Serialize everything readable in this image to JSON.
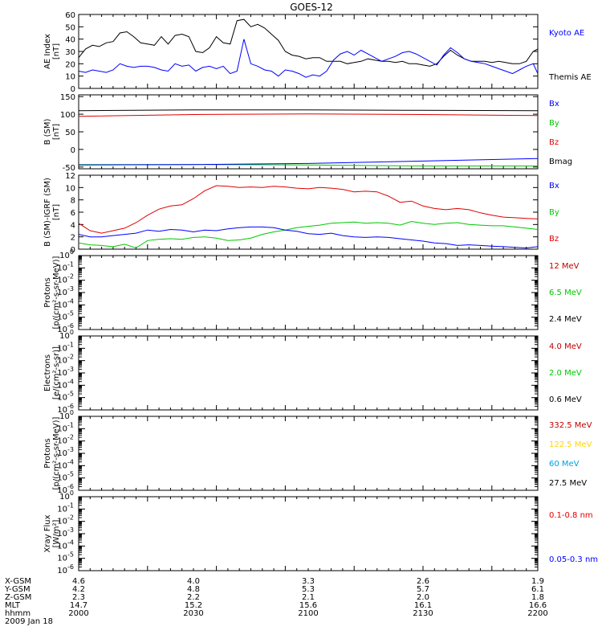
{
  "title": "GOES-12",
  "chart_data": [
    {
      "type": "line",
      "ylabel": [
        "AE Index",
        "[nT]"
      ],
      "ylim": [
        0,
        60
      ],
      "yticks": [
        "0",
        "10",
        "20",
        "30",
        "40",
        "50",
        "60"
      ],
      "legend": [
        {
          "label": "Kyoto AE",
          "color": "#0000ff"
        },
        {
          "label": "Themis AE",
          "color": "#000000"
        }
      ],
      "series": [
        {
          "name": "Themis AE",
          "color": "#000000",
          "x": [
            2000,
            2003,
            2006,
            2009,
            2012,
            2015,
            2018,
            2021,
            2024,
            2027,
            2030,
            2033,
            2036,
            2039,
            2042,
            2045,
            2048,
            2051,
            2054,
            2057,
            2060,
            2063,
            2066,
            2069,
            2072,
            2075,
            2078,
            2081,
            2084,
            2087,
            2090,
            2093,
            2096,
            2099,
            2102,
            2105,
            2108,
            2111,
            2114,
            2117,
            2120,
            2123,
            2126,
            2129,
            2132,
            2135,
            2138,
            2141,
            2144,
            2147,
            2150,
            2153,
            2156,
            2159,
            2162,
            2165,
            2168,
            2171,
            2174,
            2177,
            2180,
            2183,
            2186,
            2189,
            2192,
            2195,
            2198,
            2200
          ],
          "y": [
            25,
            32,
            35,
            34,
            37,
            38,
            45,
            46,
            42,
            37,
            36,
            35,
            42,
            36,
            43,
            44,
            42,
            30,
            29,
            33,
            42,
            37,
            36,
            55,
            56,
            50,
            52,
            49,
            44,
            39,
            30,
            27,
            26,
            24,
            25,
            25,
            22,
            22,
            22,
            20,
            21,
            22,
            24,
            23,
            22,
            22,
            21,
            22,
            20,
            20,
            19,
            18,
            20,
            26,
            31,
            27,
            24,
            22,
            22,
            22,
            21,
            22,
            21,
            20,
            20,
            22,
            30,
            32
          ]
        },
        {
          "name": "Kyoto AE",
          "color": "#0000ff",
          "x": [
            2000,
            2003,
            2006,
            2009,
            2012,
            2015,
            2018,
            2021,
            2024,
            2027,
            2030,
            2033,
            2036,
            2039,
            2042,
            2045,
            2048,
            2051,
            2054,
            2057,
            2060,
            2063,
            2066,
            2069,
            2072,
            2075,
            2078,
            2081,
            2084,
            2087,
            2090,
            2093,
            2096,
            2099,
            2102,
            2105,
            2108,
            2111,
            2114,
            2117,
            2120,
            2123,
            2126,
            2129,
            2132,
            2135,
            2138,
            2141,
            2144,
            2147,
            2150,
            2153,
            2156,
            2159,
            2162,
            2165,
            2168,
            2171,
            2174,
            2177,
            2180,
            2183,
            2186,
            2189,
            2192,
            2195,
            2198,
            2200
          ],
          "y": [
            14,
            13,
            15,
            14,
            13,
            15,
            20,
            18,
            17,
            18,
            18,
            17,
            15,
            14,
            20,
            18,
            19,
            14,
            17,
            18,
            16,
            18,
            12,
            14,
            40,
            20,
            18,
            15,
            14,
            10,
            15,
            14,
            12,
            9,
            11,
            10,
            14,
            23,
            28,
            30,
            27,
            31,
            28,
            25,
            22,
            24,
            26,
            29,
            30,
            28,
            25,
            22,
            19,
            27,
            33,
            29,
            24,
            22,
            21,
            20,
            18,
            16,
            14,
            12,
            15,
            18,
            20,
            12
          ]
        }
      ]
    },
    {
      "type": "line",
      "ylabel": [
        "B (SM)",
        "[nT]"
      ],
      "ylim": [
        -55,
        155
      ],
      "yticks": [
        "-50",
        "0",
        "50",
        "100",
        "150"
      ],
      "legend": [
        {
          "label": "Bx",
          "color": "#0000ff"
        },
        {
          "label": "By",
          "color": "#00c800"
        },
        {
          "label": "Bz",
          "color": "#e00000"
        },
        {
          "label": "Bmag",
          "color": "#000000"
        }
      ],
      "series": [
        {
          "name": "Bmag",
          "color": "#000000",
          "x": [
            2000,
            2050,
            2100,
            2150,
            2200
          ],
          "y": [
            110,
            112,
            112,
            111,
            110
          ]
        },
        {
          "name": "Bz",
          "color": "#e00000",
          "x": [
            2000,
            2050,
            2100,
            2150,
            2200
          ],
          "y": [
            94,
            99,
            101,
            99,
            96
          ]
        },
        {
          "name": "By",
          "color": "#00c800",
          "x": [
            2000,
            2050,
            2100,
            2150,
            2200
          ],
          "y": [
            -43,
            -43,
            -44,
            -47,
            -47
          ]
        },
        {
          "name": "Bx",
          "color": "#0000ff",
          "x": [
            2000,
            2050,
            2100,
            2150,
            2200
          ],
          "y": [
            -44,
            -43,
            -40,
            -33,
            -26
          ]
        }
      ]
    },
    {
      "type": "line",
      "ylabel": [
        "B (SM)-IGRF (SM)",
        "[nT]"
      ],
      "ylim": [
        0,
        12
      ],
      "yticks": [
        "0",
        "2",
        "4",
        "6",
        "8",
        "10",
        "12"
      ],
      "legend": [
        {
          "label": "Bx",
          "color": "#0000ff"
        },
        {
          "label": "By",
          "color": "#00c800"
        },
        {
          "label": "Bz",
          "color": "#e00000"
        }
      ],
      "series": [
        {
          "name": "Bz",
          "color": "#e00000",
          "x": [
            2000,
            2005,
            2010,
            2015,
            2020,
            2025,
            2030,
            2035,
            2040,
            2045,
            2050,
            2055,
            2060,
            2065,
            2070,
            2075,
            2080,
            2085,
            2090,
            2095,
            2100,
            2105,
            2110,
            2115,
            2120,
            2125,
            2130,
            2135,
            2140,
            2145,
            2150,
            2155,
            2160,
            2165,
            2170,
            2175,
            2180,
            2185,
            2190,
            2195,
            2200
          ],
          "y": [
            4.2,
            3.0,
            2.6,
            3.0,
            3.4,
            4.3,
            5.5,
            6.5,
            7.0,
            7.2,
            8.2,
            9.5,
            10.3,
            10.2,
            10.0,
            10.1,
            10.0,
            10.2,
            10.1,
            9.9,
            9.8,
            10.0,
            9.9,
            9.7,
            9.3,
            9.4,
            9.3,
            8.6,
            7.6,
            7.8,
            7.0,
            6.6,
            6.4,
            6.6,
            6.4,
            5.9,
            5.5,
            5.2,
            5.1,
            5.0,
            4.9
          ]
        },
        {
          "name": "By",
          "color": "#00c800",
          "x": [
            2000,
            2005,
            2010,
            2015,
            2020,
            2025,
            2030,
            2035,
            2040,
            2045,
            2050,
            2055,
            2060,
            2065,
            2070,
            2075,
            2080,
            2085,
            2090,
            2095,
            2100,
            2105,
            2110,
            2115,
            2120,
            2125,
            2130,
            2135,
            2140,
            2145,
            2150,
            2155,
            2160,
            2165,
            2170,
            2175,
            2180,
            2185,
            2190,
            2195,
            2200
          ],
          "y": [
            1.0,
            0.7,
            0.6,
            0.4,
            0.8,
            0.2,
            1.4,
            1.6,
            1.7,
            1.6,
            1.9,
            2.0,
            1.8,
            1.4,
            1.5,
            1.8,
            2.4,
            2.8,
            3.1,
            3.5,
            3.7,
            3.9,
            4.2,
            4.3,
            4.4,
            4.2,
            4.3,
            4.2,
            3.9,
            4.5,
            4.2,
            4.0,
            4.2,
            4.3,
            4.0,
            3.9,
            3.8,
            3.8,
            3.6,
            3.4,
            3.2
          ]
        },
        {
          "name": "Bx",
          "color": "#0000ff",
          "x": [
            2000,
            2005,
            2010,
            2015,
            2020,
            2025,
            2030,
            2035,
            2040,
            2045,
            2050,
            2055,
            2060,
            2065,
            2070,
            2075,
            2080,
            2085,
            2090,
            2095,
            2100,
            2105,
            2110,
            2115,
            2120,
            2125,
            2130,
            2135,
            2140,
            2145,
            2150,
            2155,
            2160,
            2165,
            2170,
            2175,
            2180,
            2185,
            2190,
            2195,
            2200
          ],
          "y": [
            2.4,
            2.0,
            2.0,
            2.2,
            2.4,
            2.6,
            3.1,
            2.9,
            3.2,
            3.1,
            2.8,
            3.1,
            3.0,
            3.3,
            3.5,
            3.6,
            3.6,
            3.5,
            3.1,
            2.9,
            2.5,
            2.4,
            2.6,
            2.2,
            2.0,
            1.9,
            2.0,
            1.9,
            1.7,
            1.5,
            1.3,
            1.0,
            0.9,
            0.6,
            0.7,
            0.6,
            0.5,
            0.4,
            0.3,
            0.2,
            0.4
          ]
        }
      ]
    },
    {
      "type": "line",
      "ylabel": [
        "Protons",
        "[p/(cm²-s-sr-MeV)]"
      ],
      "yscale": "log",
      "ylim": [
        1e-06,
        1
      ],
      "legend": [
        {
          "label": "12 MeV",
          "color": "#c00000"
        },
        {
          "label": "6.5 MeV",
          "color": "#00c800"
        },
        {
          "label": "2.4 MeV",
          "color": "#000000"
        }
      ],
      "series": []
    },
    {
      "type": "line",
      "ylabel": [
        "Electrons",
        "[e/(cm²-s-sr)]"
      ],
      "yscale": "log",
      "ylim": [
        1e-06,
        1
      ],
      "legend": [
        {
          "label": "4.0 MeV",
          "color": "#c00000"
        },
        {
          "label": "2.0 MeV",
          "color": "#00c800"
        },
        {
          "label": "0.6 MeV",
          "color": "#000000"
        }
      ],
      "series": []
    },
    {
      "type": "line",
      "ylabel": [
        "Protons",
        "[p/(cm²-s-sr-MeV)]"
      ],
      "yscale": "log",
      "ylim": [
        1e-06,
        1
      ],
      "legend": [
        {
          "label": "332.5 MeV",
          "color": "#c00000"
        },
        {
          "label": "122.5 MeV",
          "color": "#ffd700"
        },
        {
          "label": "60 MeV",
          "color": "#00a0e0"
        },
        {
          "label": "27.5 MeV",
          "color": "#000000"
        }
      ],
      "series": []
    },
    {
      "type": "line",
      "ylabel": [
        "Xray Flux",
        "[W/m²]"
      ],
      "yscale": "log",
      "ylim": [
        1e-06,
        1
      ],
      "legend": [
        {
          "label": "0.1-0.8 nm",
          "color": "#e00000"
        },
        {
          "label": "0.05-0.3 nm",
          "color": "#0000ff"
        }
      ],
      "series": []
    }
  ],
  "log_ticks": [
    {
      "base": "10",
      "exp": "0"
    },
    {
      "base": "10",
      "exp": "-1"
    },
    {
      "base": "10",
      "exp": "-2"
    },
    {
      "base": "10",
      "exp": "-3"
    },
    {
      "base": "10",
      "exp": "-4"
    },
    {
      "base": "10",
      "exp": "-5"
    },
    {
      "base": "10",
      "exp": "-6"
    }
  ],
  "xaxis": {
    "range": [
      2000,
      2200
    ],
    "rows": [
      {
        "label": "X-GSM",
        "values": [
          "4.6",
          "4.0",
          "3.3",
          "2.6",
          "1.9"
        ]
      },
      {
        "label": "Y-GSM",
        "values": [
          "4.2",
          "4.8",
          "5.3",
          "5.7",
          "6.1"
        ]
      },
      {
        "label": "Z-GSM",
        "values": [
          "2.3",
          "2.2",
          "2.1",
          "2.0",
          "1.8"
        ]
      },
      {
        "label": "MLT",
        "values": [
          "14.7",
          "15.2",
          "15.6",
          "16.1",
          "16.6"
        ]
      },
      {
        "label": "hhmm",
        "values": [
          "2000",
          "2030",
          "2100",
          "2130",
          "2200"
        ]
      }
    ],
    "date": "2009 Jan 18"
  }
}
